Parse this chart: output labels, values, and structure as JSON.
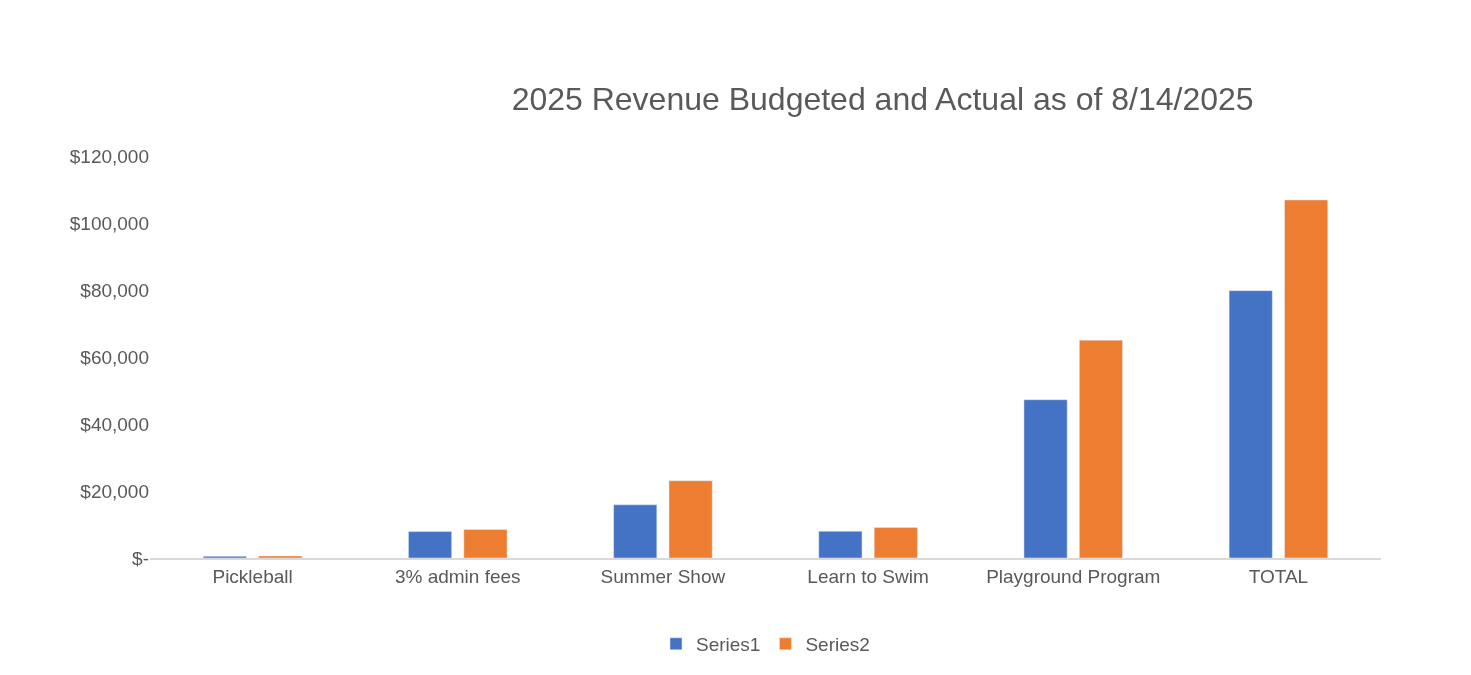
{
  "chart_data": {
    "type": "bar",
    "title": "2025 Revenue Budgeted and Actual as of 8/14/2025",
    "categories": [
      "Pickleball",
      "3% admin fees",
      "Summer Show",
      "Learn to Swim",
      "Playground Program",
      "TOTAL"
    ],
    "series": [
      {
        "name": "Series1",
        "color": "#4472c4",
        "values": [
          500,
          7900,
          15900,
          8000,
          47300,
          79900
        ]
      },
      {
        "name": "Series2",
        "color": "#ed7d31",
        "values": [
          600,
          8500,
          23100,
          9100,
          65100,
          107000
        ]
      }
    ],
    "ylim": [
      0,
      120000
    ],
    "yticks": [
      {
        "value": 0,
        "label": "$-"
      },
      {
        "value": 20000,
        "label": "$20,000"
      },
      {
        "value": 40000,
        "label": "$40,000"
      },
      {
        "value": 60000,
        "label": "$60,000"
      },
      {
        "value": 80000,
        "label": "$80,000"
      },
      {
        "value": 100000,
        "label": "$100,000"
      },
      {
        "value": 120000,
        "label": "$120,000"
      }
    ],
    "grid": false,
    "legend": "bottom"
  }
}
